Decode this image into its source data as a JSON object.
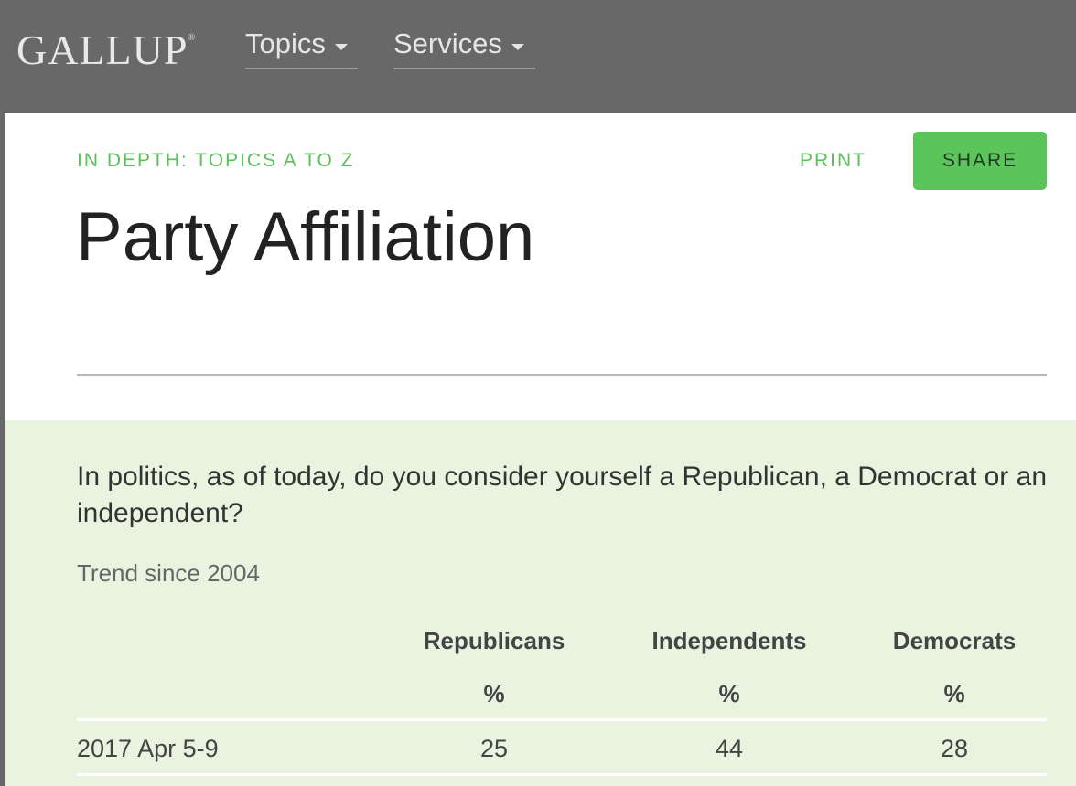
{
  "header": {
    "logo_text": "GALLUP",
    "logo_mark": "®",
    "nav": [
      {
        "label": "Topics"
      },
      {
        "label": "Services"
      }
    ]
  },
  "page": {
    "eyebrow": "IN DEPTH: TOPICS A TO Z",
    "print_label": "PRINT",
    "share_label": "SHARE",
    "title": "Party Affiliation"
  },
  "poll": {
    "question": "In politics, as of today, do you consider yourself a Republican, a Democrat or an independent?",
    "trend_label": "Trend since 2004",
    "columns": [
      {
        "header": "Republicans",
        "unit": "%"
      },
      {
        "header": "Independents",
        "unit": "%"
      },
      {
        "header": "Democrats",
        "unit": "%"
      }
    ],
    "rows": [
      {
        "date": "2017 Apr 5-9",
        "values": [
          "25",
          "44",
          "28"
        ]
      }
    ]
  },
  "colors": {
    "topbar": "#686868",
    "accent_green": "#5bc45b",
    "panel_bg": "#e9f3df"
  }
}
